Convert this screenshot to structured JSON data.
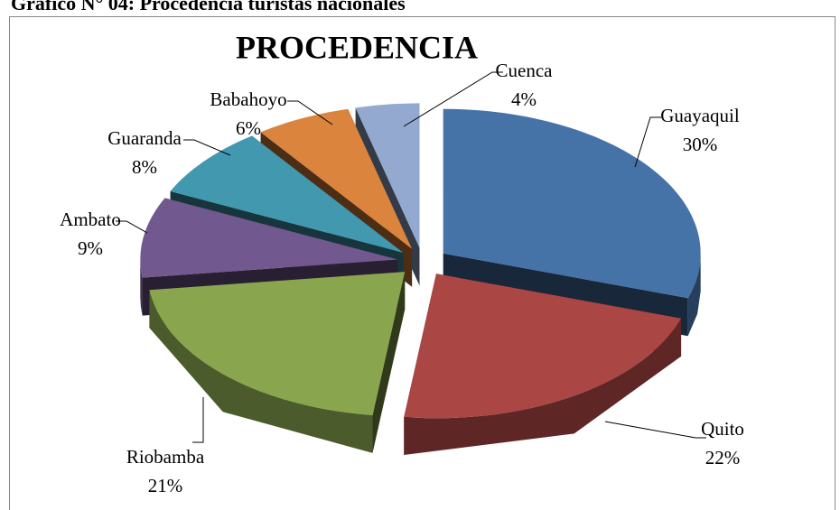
{
  "header": "Gráfico N° 04: Procedencia turistas nacionales",
  "chart_data": {
    "type": "pie",
    "title": "PROCEDENCIA",
    "categories": [
      "Guayaquil",
      "Quito",
      "Riobamba",
      "Ambato",
      "Guaranda",
      "Babahoyo",
      "Cuenca"
    ],
    "values": [
      30,
      22,
      21,
      9,
      8,
      6,
      4
    ],
    "value_labels": [
      "30%",
      "22%",
      "21%",
      "9%",
      "8%",
      "6%",
      "4%"
    ],
    "colors": [
      "#4572a7",
      "#aa4643",
      "#89a54e",
      "#71588f",
      "#4198af",
      "#db843d",
      "#93a9cf"
    ]
  }
}
